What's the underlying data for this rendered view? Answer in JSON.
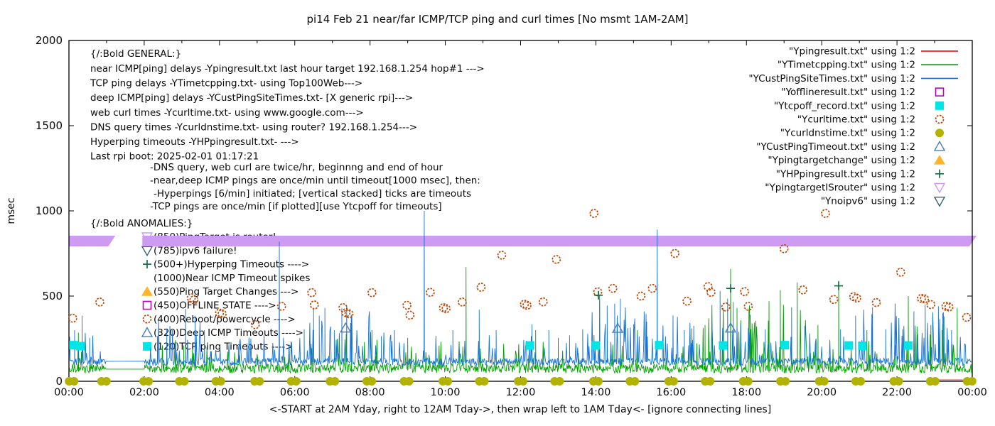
{
  "title": "pi14 Feb 21  near/far ICMP/TCP ping and curl times [No msmt 1AM-2AM]",
  "chart_data": {
    "type": "line",
    "title": "pi14 Feb 21  near/far ICMP/TCP ping and curl times [No msmt 1AM-2AM]",
    "xlabel": "<-START at 2AM Yday, right to 12AM Tday->, then wrap left to 1AM Tday<- [ignore connecting lines]",
    "ylabel": "msec",
    "xlim_hours": [
      0,
      24
    ],
    "ylim": [
      0,
      2000
    ],
    "y_ticks": [
      0,
      500,
      1000,
      1500,
      2000
    ],
    "x_tick_step_hours": 2,
    "x_tick_labels": [
      "00:00",
      "02:00",
      "04:00",
      "06:00",
      "08:00",
      "10:00",
      "12:00",
      "14:00",
      "16:00",
      "18:00",
      "20:00",
      "22:00",
      "00:00"
    ],
    "no_measurement_gap_hours": [
      1,
      2
    ],
    "grid": false,
    "legend_position": "top-right-inside",
    "noise_seed": 1234567,
    "series": [
      {
        "id": "Ypingresult",
        "label": "\"Ypingresult.txt\" using 1:2",
        "glyph": "line",
        "color": "#e60000",
        "points": [
          [
            23.0,
            8
          ],
          [
            24.0,
            8
          ]
        ]
      },
      {
        "id": "YTimetcpping",
        "label": "\"YTimetcpping.txt\" using 1:2",
        "glyph": "line",
        "color": "#00a000",
        "gen": {
          "baseline": 48,
          "amp": 55,
          "bumpP": 0.1,
          "bumpAmp": 150,
          "clusters": [
            [
              7.0,
              8.2,
              1.4
            ],
            [
              16.5,
              19.6,
              2.6
            ],
            [
              20.9,
              23.9,
              1.8
            ]
          ],
          "spikes": [
            [
              0.25,
              285
            ],
            [
              2.6,
              220
            ],
            [
              3.05,
              210
            ],
            [
              5.9,
              235
            ],
            [
              7.5,
              260
            ],
            [
              8.05,
              300
            ],
            [
              9.0,
              255
            ],
            [
              10.55,
              670
            ],
            [
              12.4,
              300
            ],
            [
              13.0,
              255
            ],
            [
              14.1,
              500
            ],
            [
              15.1,
              300
            ],
            [
              16.55,
              310
            ],
            [
              16.9,
              330
            ],
            [
              17.58,
              660
            ],
            [
              17.75,
              430
            ],
            [
              18.1,
              390
            ],
            [
              18.6,
              470
            ],
            [
              18.9,
              535
            ],
            [
              19.35,
              580
            ],
            [
              19.9,
              330
            ],
            [
              20.45,
              590
            ],
            [
              21.2,
              300
            ],
            [
              22.3,
              500
            ],
            [
              22.9,
              330
            ],
            [
              23.2,
              300
            ],
            [
              23.6,
              430
            ]
          ]
        }
      },
      {
        "id": "YCustPingSiteTimes",
        "label": "\"YCustPingSiteTimes.txt\" using 1:2",
        "glyph": "line",
        "color": "#1874d2",
        "gen": {
          "baseline": 92,
          "amp": 45,
          "bumpP": 0.13,
          "bumpAmp": 155,
          "clusters": [
            [
              2.2,
              3.6,
              1.6
            ],
            [
              6.3,
              8.1,
              1.9
            ],
            [
              13.9,
              18.3,
              2.1
            ],
            [
              20.8,
              23.4,
              2.1
            ]
          ],
          "spikes": [
            [
              0.15,
              300
            ],
            [
              0.35,
              385
            ],
            [
              0.55,
              255
            ],
            [
              2.35,
              265
            ],
            [
              2.6,
              310
            ],
            [
              3.1,
              425
            ],
            [
              3.35,
              385
            ],
            [
              3.6,
              300
            ],
            [
              4.5,
              205
            ],
            [
              5.59,
              820
            ],
            [
              6.25,
              305
            ],
            [
              6.5,
              430
            ],
            [
              6.65,
              385
            ],
            [
              6.8,
              430
            ],
            [
              7.05,
              300
            ],
            [
              7.25,
              430
            ],
            [
              7.38,
              445
            ],
            [
              7.5,
              390
            ],
            [
              8.3,
              265
            ],
            [
              8.65,
              300
            ],
            [
              9.44,
              1000
            ],
            [
              10.2,
              300
            ],
            [
              10.9,
              420
            ],
            [
              11.35,
              300
            ],
            [
              12.3,
              335
            ],
            [
              12.75,
              300
            ],
            [
              13.3,
              270
            ],
            [
              13.65,
              305
            ],
            [
              14.1,
              480
            ],
            [
              14.3,
              445
            ],
            [
              14.5,
              455
            ],
            [
              14.65,
              485
            ],
            [
              15.0,
              335
            ],
            [
              15.35,
              300
            ],
            [
              15.63,
              890
            ],
            [
              16.05,
              385
            ],
            [
              16.35,
              300
            ],
            [
              16.6,
              325
            ],
            [
              17.3,
              530
            ],
            [
              17.5,
              485
            ],
            [
              17.65,
              465
            ],
            [
              17.85,
              335
            ],
            [
              18.25,
              355
            ],
            [
              18.5,
              305
            ],
            [
              19.2,
              435
            ],
            [
              19.55,
              325
            ],
            [
              20.5,
              305
            ],
            [
              20.9,
              385
            ],
            [
              21.35,
              435
            ],
            [
              21.7,
              305
            ],
            [
              22.15,
              305
            ],
            [
              22.45,
              345
            ],
            [
              22.75,
              450
            ],
            [
              23.1,
              440
            ],
            [
              23.25,
              380
            ],
            [
              23.45,
              300
            ]
          ]
        }
      },
      {
        "id": "Yofflineresult",
        "label": "\"Yofflineresult.txt\" using 1:2",
        "glyph": "square-open",
        "color": "#c000c0",
        "points": []
      },
      {
        "id": "Ytcpoff_record",
        "label": "\"Ytcpoff_record.txt\" using 1:2",
        "glyph": "square-fill",
        "color": "#00e6e6",
        "points": [
          [
            0.12,
            212
          ],
          [
            0.3,
            206
          ],
          [
            12.25,
            210
          ],
          [
            14.0,
            210
          ],
          [
            15.68,
            212
          ],
          [
            17.38,
            210
          ],
          [
            19.02,
            212
          ],
          [
            20.72,
            210
          ],
          [
            21.08,
            208
          ],
          [
            22.3,
            210
          ]
        ]
      },
      {
        "id": "Ycurltime",
        "label": "\"Ycurltime.txt\" using 1:2",
        "glyph": "circle-open",
        "color": "#c04500",
        "points": [
          [
            0.1,
            370
          ],
          [
            0.82,
            465
          ],
          [
            3.25,
            490
          ],
          [
            3.32,
            478
          ],
          [
            4.0,
            400
          ],
          [
            4.07,
            396
          ],
          [
            4.95,
            332
          ],
          [
            5.65,
            440
          ],
          [
            6.45,
            520
          ],
          [
            6.52,
            448
          ],
          [
            7.28,
            432
          ],
          [
            7.36,
            402
          ],
          [
            7.44,
            396
          ],
          [
            8.05,
            520
          ],
          [
            8.98,
            446
          ],
          [
            9.06,
            388
          ],
          [
            9.6,
            522
          ],
          [
            9.95,
            432
          ],
          [
            10.02,
            426
          ],
          [
            10.45,
            465
          ],
          [
            10.95,
            552
          ],
          [
            11.5,
            740
          ],
          [
            12.1,
            452
          ],
          [
            12.17,
            446
          ],
          [
            12.6,
            466
          ],
          [
            12.95,
            715
          ],
          [
            13.95,
            985
          ],
          [
            14.05,
            525
          ],
          [
            14.45,
            545
          ],
          [
            15.2,
            500
          ],
          [
            15.5,
            545
          ],
          [
            16.1,
            750
          ],
          [
            16.42,
            470
          ],
          [
            16.98,
            556
          ],
          [
            17.06,
            522
          ],
          [
            17.45,
            436
          ],
          [
            17.95,
            526
          ],
          [
            18.05,
            440
          ],
          [
            19.0,
            778
          ],
          [
            19.5,
            536
          ],
          [
            20.1,
            985
          ],
          [
            20.32,
            480
          ],
          [
            20.85,
            496
          ],
          [
            20.93,
            488
          ],
          [
            21.45,
            462
          ],
          [
            22.1,
            640
          ],
          [
            22.65,
            486
          ],
          [
            22.73,
            484
          ],
          [
            22.9,
            450
          ],
          [
            23.3,
            440
          ],
          [
            23.38,
            436
          ],
          [
            23.85,
            375
          ]
        ]
      },
      {
        "id": "Ycurldnstime",
        "label": "\"Ycurldnstime.txt\" using 1:2",
        "glyph": "circle-fill",
        "color": "#b2b200",
        "value": 0,
        "hour_blobs": [
          0.07,
          0.93,
          2.05,
          3.0,
          3.97,
          5.0,
          5.97,
          7.0,
          7.98,
          8.97,
          10.0,
          10.97,
          12.0,
          12.97,
          14.0,
          14.97,
          16.0,
          16.97,
          17.98,
          18.97,
          20.0,
          20.97,
          21.98,
          22.95,
          23.93
        ]
      },
      {
        "id": "YCustPingTimeout",
        "label": "\"YCustPingTimeout.txt\" using 1:2",
        "glyph": "triangle-open",
        "color": "#4a7ebb",
        "points": [
          [
            7.35,
            312
          ],
          [
            14.58,
            310
          ],
          [
            17.58,
            312
          ]
        ]
      },
      {
        "id": "Ypingtargetchange",
        "label": "\"Ypingtargetchange\" using 1:2",
        "glyph": "triangle-fill",
        "color": "#ffb429",
        "points": []
      },
      {
        "id": "YHPpingresult",
        "label": "\"YHPpingresult.txt\" using 1:2",
        "glyph": "plus",
        "color": "#156b45",
        "points": [
          [
            14.07,
            505
          ],
          [
            17.58,
            545
          ],
          [
            20.45,
            560
          ]
        ]
      },
      {
        "id": "YpingtargetISrouter",
        "label": "\"YpingtargetISrouter\" using 1:2",
        "glyph": "tri-down-open",
        "color": "#cd9cf2",
        "band": {
          "value": 850,
          "segments": [
            [
              0,
              1.12
            ],
            [
              1.95,
              24
            ]
          ]
        }
      },
      {
        "id": "Ynoipv6",
        "label": "\"Ynoipv6\" using 1:2",
        "glyph": "tri-down-open",
        "color": "#30607f",
        "points": []
      }
    ],
    "annotations": {
      "general_header": "{/:Bold GENERAL:}",
      "general": [
        "near ICMP[ping] delays -Ypingresult.txt last hour target 192.168.1.254 hop#1 --->",
        "TCP ping delays -YTimetcpping.txt- using Top100Web--->",
        "deep ICMP[ping] delays -YCustPingSiteTimes.txt- [X generic rpi]--->",
        "web curl times -Ycurltime.txt- using www.google.com--->",
        "DNS query times -Ycurldnstime.txt- using router? 192.168.1.254--->",
        "Hyperping timeouts -YHPpingresult.txt- --->",
        "Last rpi boot: 2025-02-01 01:17:21"
      ],
      "notes": [
        "-DNS query, web curl are twice/hr, beginnng and end of hour",
        "-near,deep ICMP pings are once/min until timeout[1000 msec], then:",
        " -Hyperpings [6/min] initiated; [vertical stacked] ticks are timeouts",
        "-TCP pings are once/min [if plotted][use Ytcpoff for timeouts]"
      ],
      "anomalies_header": "{/:Bold ANOMALIES:}",
      "anomalies": [
        {
          "glyph": "tri-down-open",
          "color": "#cd9cf2",
          "text": "(850)PingTarget is router!"
        },
        {
          "glyph": "tri-down-open",
          "color": "#30607f",
          "text": "(785)ipv6 failure!"
        },
        {
          "glyph": "plus",
          "color": "#156b45",
          "text": "(500+)Hyperping Timeouts ---->"
        },
        {
          "glyph": null,
          "color": null,
          "text": "(1000)Near ICMP Timeout spikes"
        },
        {
          "glyph": "triangle-fill",
          "color": "#ffb429",
          "text": "(550)Ping Target Changes --->"
        },
        {
          "glyph": "square-open",
          "color": "#c000c0",
          "text": "(450)OFFLINE STATE ---->"
        },
        {
          "glyph": "circle-open",
          "color": "#c04500",
          "text": "(400)Reboot/powercycle ---->"
        },
        {
          "glyph": "triangle-open",
          "color": "#4a7ebb",
          "text": "(320)Deep ICMP Timeouts ---->"
        },
        {
          "glyph": "square-fill",
          "color": "#00e6e6",
          "text": "(120)TCP ping Timeouts ---->"
        }
      ]
    },
    "colors": {
      "frame": "#000000",
      "text": "#0a0a0a"
    }
  }
}
